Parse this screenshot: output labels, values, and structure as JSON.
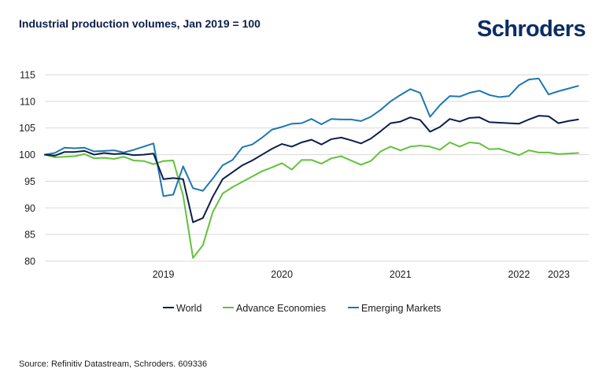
{
  "header": {
    "title": "Industrial production volumes, Jan 2019 = 100"
  },
  "logo": {
    "text": "Schroders",
    "color": "#0b2d64"
  },
  "footer": {
    "source": "Source: Refinitiv Datastream, Schroders. 609336"
  },
  "chart_data": {
    "type": "line",
    "title": "Industrial production volumes, Jan 2019 = 100",
    "xlabel": "",
    "ylabel": "",
    "ylim": [
      80,
      115
    ],
    "yticks": [
      80,
      85,
      90,
      95,
      100,
      105,
      110,
      115
    ],
    "xticks": [
      "2019",
      "2020",
      "2021",
      "2022",
      "2023"
    ],
    "grid": true,
    "legend_position": "bottom",
    "x": [
      "2018-07",
      "2018-08",
      "2018-09",
      "2018-10",
      "2018-11",
      "2018-12",
      "2019-01",
      "2019-02",
      "2019-03",
      "2019-04",
      "2019-05",
      "2019-06",
      "2019-07",
      "2019-08",
      "2019-09",
      "2019-10",
      "2019-11",
      "2019-12",
      "2020-01",
      "2020-02",
      "2020-03",
      "2020-04",
      "2020-05",
      "2020-06",
      "2020-07",
      "2020-08",
      "2020-09",
      "2020-10",
      "2020-11",
      "2020-12",
      "2021-01",
      "2021-02",
      "2021-03",
      "2021-04",
      "2021-05",
      "2021-06",
      "2021-07",
      "2021-08",
      "2021-09",
      "2021-10",
      "2021-11",
      "2021-12",
      "2022-01",
      "2022-02",
      "2022-03",
      "2022-04",
      "2022-05",
      "2022-06",
      "2022-07",
      "2022-08",
      "2022-09",
      "2022-10",
      "2022-11",
      "2022-12",
      "2023-01",
      "2023-02",
      "2023-03",
      "2023-04",
      "2023-05",
      "2023-06"
    ],
    "series": [
      {
        "name": "World",
        "color": "#0b1e4a",
        "values": [
          100.0,
          99.8,
          100.5,
          100.5,
          100.7,
          100.0,
          100.3,
          100.1,
          100.2,
          99.9,
          100.0,
          100.2,
          95.4,
          95.6,
          95.4,
          87.3,
          88.1,
          92.1,
          95.4,
          96.7,
          98.0,
          98.9,
          100.0,
          101.1,
          102.0,
          101.5,
          102.3,
          102.8,
          101.9,
          102.9,
          103.2,
          102.7,
          102.1,
          103.0,
          104.4,
          105.9,
          106.2,
          107.0,
          106.5,
          104.3,
          105.2,
          106.7,
          106.2,
          106.9,
          107.0,
          106.1,
          106.0,
          105.9,
          105.8,
          106.6,
          107.3,
          107.2,
          105.9,
          106.3,
          106.6,
          106.8,
          106.9,
          106.7,
          106.6,
          106.4
        ]
      },
      {
        "name": "Advance Economies",
        "color": "#62c23b",
        "values": [
          100.0,
          99.5,
          99.6,
          99.7,
          100.1,
          99.3,
          99.4,
          99.2,
          99.6,
          98.9,
          98.8,
          98.2,
          98.8,
          98.9,
          92.3,
          80.6,
          83.0,
          89.2,
          92.7,
          93.9,
          94.9,
          95.9,
          96.9,
          97.6,
          98.4,
          97.2,
          99.0,
          99.0,
          98.3,
          99.3,
          99.7,
          98.9,
          98.1,
          98.8,
          100.6,
          101.5,
          100.8,
          101.5,
          101.7,
          101.5,
          100.9,
          102.3,
          101.5,
          102.3,
          102.1,
          101.0,
          101.1,
          100.5,
          99.9,
          100.8,
          100.4,
          100.4,
          100.1,
          100.2,
          100.3,
          100.4,
          100.6,
          100.5,
          100.4,
          100.3
        ]
      },
      {
        "name": "Emerging Markets",
        "color": "#1d77b3",
        "values": [
          100.0,
          100.3,
          101.3,
          101.2,
          101.3,
          100.6,
          100.7,
          100.8,
          100.4,
          100.9,
          101.5,
          102.1,
          92.2,
          92.5,
          97.8,
          93.7,
          93.2,
          95.5,
          98.0,
          99.0,
          101.4,
          101.9,
          103.2,
          104.7,
          105.2,
          105.8,
          105.9,
          106.7,
          105.7,
          106.7,
          106.6,
          106.6,
          106.3,
          107.1,
          108.4,
          110.0,
          111.2,
          112.3,
          111.6,
          107.1,
          109.3,
          111.0,
          110.9,
          111.6,
          112.0,
          111.2,
          110.8,
          111.0,
          113.0,
          114.1,
          114.3,
          111.3,
          111.9,
          112.4,
          112.9,
          113.2,
          113.4,
          113.2,
          112.9,
          112.6
        ]
      }
    ]
  }
}
